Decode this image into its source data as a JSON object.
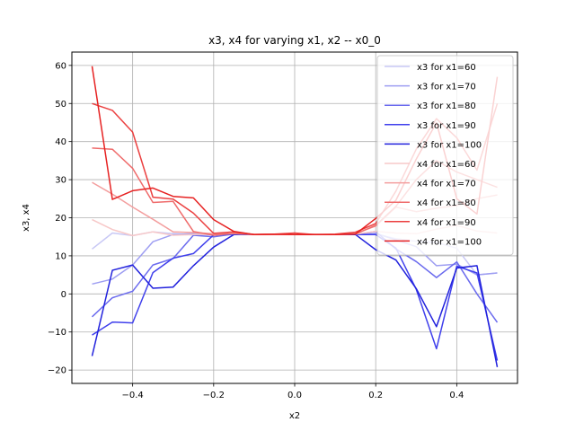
{
  "chart_data": {
    "type": "line",
    "title": "x3, x4 for varying x1, x2 -- x0_0",
    "xlabel": "x2",
    "ylabel": "x3, x4",
    "xlim": [
      -0.55,
      0.55
    ],
    "ylim": [
      -23.5,
      63.5
    ],
    "xticks": [
      -0.4,
      -0.2,
      0.0,
      0.2,
      0.4
    ],
    "xtick_labels": [
      "−0.4",
      "−0.2",
      "0.0",
      "0.2",
      "0.4"
    ],
    "yticks": [
      -20,
      -10,
      0,
      10,
      20,
      30,
      40,
      50,
      60
    ],
    "ytick_labels": [
      "−20",
      "−10",
      "0",
      "10",
      "20",
      "30",
      "40",
      "50",
      "60"
    ],
    "grid": true,
    "legend_position": "top-right",
    "x": [
      -0.5,
      -0.45,
      -0.4,
      -0.35,
      -0.3,
      -0.25,
      -0.2,
      -0.15,
      -0.1,
      -0.05,
      0.0,
      0.05,
      0.1,
      0.15,
      0.2,
      0.25,
      0.3,
      0.35,
      0.4,
      0.45,
      0.5
    ],
    "series": [
      {
        "name": "x3 for x1=60",
        "color": "#c8c8f5",
        "values": [
          11.8,
          16.0,
          15.3,
          16.3,
          15.8,
          15.5,
          15.6,
          15.7,
          15.6,
          15.6,
          15.6,
          15.6,
          15.6,
          15.6,
          15.7,
          14.5,
          13.8,
          13.5,
          12.0,
          5.0,
          5.5
        ]
      },
      {
        "name": "x3 for x1=70",
        "color": "#9e9ef2",
        "values": [
          2.6,
          3.9,
          7.6,
          13.7,
          15.6,
          15.8,
          15.6,
          15.6,
          15.6,
          15.6,
          15.6,
          15.6,
          15.6,
          15.6,
          15.9,
          14.2,
          12.4,
          7.4,
          7.8,
          5.0,
          5.5
        ]
      },
      {
        "name": "x3 for x1=80",
        "color": "#6b6bee",
        "values": [
          -6.0,
          -1.0,
          0.7,
          7.6,
          9.3,
          15.4,
          15.0,
          15.7,
          15.6,
          15.6,
          15.6,
          15.6,
          15.6,
          15.6,
          16.4,
          11.8,
          8.5,
          4.3,
          8.4,
          0.0,
          -7.5
        ]
      },
      {
        "name": "x3 for x1=90",
        "color": "#4040ec",
        "values": [
          -10.8,
          -7.4,
          -7.6,
          5.6,
          9.4,
          10.6,
          15.5,
          15.7,
          15.6,
          15.6,
          15.6,
          15.6,
          15.6,
          15.6,
          15.6,
          12.0,
          1.2,
          -14.4,
          7.3,
          5.5,
          -17.5
        ]
      },
      {
        "name": "x3 for x1=100",
        "color": "#2222dd",
        "values": [
          -16.3,
          6.2,
          7.6,
          1.5,
          1.8,
          7.4,
          12.3,
          15.6,
          15.6,
          15.6,
          15.6,
          15.6,
          15.6,
          15.6,
          11.6,
          8.9,
          1.4,
          -8.6,
          6.8,
          7.4,
          -19.2
        ]
      },
      {
        "name": "x4 for x1=60",
        "color": "#f7c8c8",
        "values": [
          19.5,
          16.9,
          15.3,
          16.3,
          15.4,
          15.6,
          15.7,
          15.8,
          15.6,
          15.6,
          15.6,
          15.6,
          15.6,
          15.7,
          16.4,
          16.0,
          15.8,
          17.0,
          18.0,
          16.5,
          16.0
        ]
      },
      {
        "name": "x4 for x1=70",
        "color": "#f39e9e",
        "values": [
          29.3,
          26.2,
          22.8,
          19.6,
          16.3,
          16.1,
          15.8,
          15.8,
          15.7,
          15.7,
          15.6,
          15.7,
          15.6,
          15.9,
          17.8,
          22.8,
          21.6,
          22.5,
          23.2,
          25.0,
          26.0
        ]
      },
      {
        "name": "x4 for x1=80",
        "color": "#ef6b6b",
        "values": [
          38.3,
          38.0,
          33.0,
          24.0,
          24.3,
          16.4,
          15.4,
          15.9,
          15.6,
          15.6,
          15.6,
          15.6,
          15.6,
          15.7,
          18.0,
          23.0,
          30.0,
          35.0,
          32.0,
          30.0,
          28.0
        ]
      },
      {
        "name": "x4 for x1=90",
        "color": "#eb4040",
        "values": [
          50.0,
          48.2,
          42.5,
          25.4,
          24.9,
          21.2,
          15.9,
          16.3,
          15.6,
          15.7,
          16.0,
          15.6,
          15.7,
          16.2,
          18.5,
          27.0,
          38.0,
          46.0,
          41.0,
          32.5,
          50.0
        ]
      },
      {
        "name": "x4 for x1=100",
        "color": "#e62222",
        "values": [
          59.8,
          24.8,
          27.1,
          27.8,
          25.6,
          25.2,
          19.5,
          16.4,
          15.6,
          15.7,
          15.6,
          15.6,
          15.6,
          15.7,
          19.8,
          24.6,
          35.4,
          45.0,
          25.0,
          21.0,
          57.0
        ]
      }
    ]
  }
}
